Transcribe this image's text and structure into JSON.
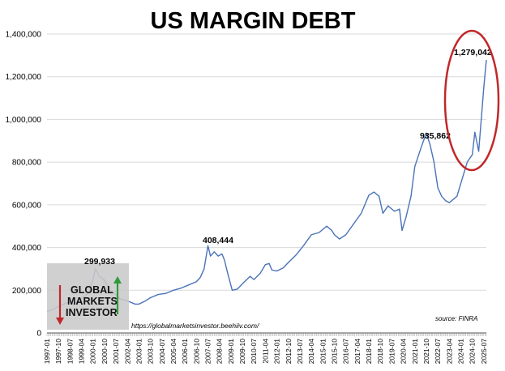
{
  "chart_data": {
    "type": "line",
    "title": "US MARGIN DEBT",
    "xlabel": "",
    "ylabel": "",
    "ylim": [
      0,
      1400000
    ],
    "yticks": [
      0,
      200000,
      400000,
      600000,
      800000,
      1000000,
      1200000,
      1400000
    ],
    "ytick_labels": [
      "0",
      "200,000",
      "400,000",
      "600,000",
      "800,000",
      "1,000,000",
      "1,200,000",
      "1,400,000"
    ],
    "x_range": [
      "1997-01",
      "2025-09"
    ],
    "xtick_labels": [
      "1997-01",
      "1997-10",
      "1998-07",
      "1999-04",
      "2000-01",
      "2000-10",
      "2001-07",
      "2002-04",
      "2003-01",
      "2003-10",
      "2004-07",
      "2005-04",
      "2006-01",
      "2006-10",
      "2007-07",
      "2008-04",
      "2009-01",
      "2009-10",
      "2010-07",
      "2011-04",
      "2012-01",
      "2012-10",
      "2013-07",
      "2014-04",
      "2015-01",
      "2015-10",
      "2016-07",
      "2017-04",
      "2018-01",
      "2018-10",
      "2019-07",
      "2020-04",
      "2021-01",
      "2021-10",
      "2022-07",
      "2023-04",
      "2024-01",
      "2024-10",
      "2025-07"
    ],
    "grid": true,
    "legend": "none",
    "series": [
      {
        "color": "#4a73b8",
        "points": [
          [
            "1997-01",
            100000
          ],
          [
            "1997-06",
            110000
          ],
          [
            "1997-10",
            125000
          ],
          [
            "1998-04",
            140000
          ],
          [
            "1998-07",
            145000
          ],
          [
            "1998-10",
            130000
          ],
          [
            "1999-01",
            150000
          ],
          [
            "1999-06",
            170000
          ],
          [
            "1999-10",
            190000
          ],
          [
            "2000-01",
            250000
          ],
          [
            "2000-03",
            299933
          ],
          [
            "2000-06",
            265000
          ],
          [
            "2000-10",
            248000
          ],
          [
            "2001-02",
            200000
          ],
          [
            "2001-07",
            180000
          ],
          [
            "2001-10",
            160000
          ],
          [
            "2002-04",
            150000
          ],
          [
            "2002-10",
            135000
          ],
          [
            "2003-01",
            135000
          ],
          [
            "2003-06",
            150000
          ],
          [
            "2003-10",
            165000
          ],
          [
            "2004-04",
            180000
          ],
          [
            "2004-10",
            185000
          ],
          [
            "2005-04",
            200000
          ],
          [
            "2005-10",
            210000
          ],
          [
            "2006-04",
            225000
          ],
          [
            "2006-10",
            240000
          ],
          [
            "2007-01",
            260000
          ],
          [
            "2007-04",
            300000
          ],
          [
            "2007-07",
            408444
          ],
          [
            "2007-09",
            360000
          ],
          [
            "2007-12",
            380000
          ],
          [
            "2008-03",
            360000
          ],
          [
            "2008-06",
            370000
          ],
          [
            "2008-08",
            340000
          ],
          [
            "2008-10",
            290000
          ],
          [
            "2009-02",
            200000
          ],
          [
            "2009-06",
            205000
          ],
          [
            "2009-10",
            230000
          ],
          [
            "2010-04",
            265000
          ],
          [
            "2010-07",
            250000
          ],
          [
            "2010-12",
            280000
          ],
          [
            "2011-04",
            320000
          ],
          [
            "2011-07",
            325000
          ],
          [
            "2011-09",
            295000
          ],
          [
            "2012-01",
            290000
          ],
          [
            "2012-06",
            305000
          ],
          [
            "2012-10",
            330000
          ],
          [
            "2013-04",
            365000
          ],
          [
            "2013-10",
            410000
          ],
          [
            "2014-04",
            460000
          ],
          [
            "2014-10",
            470000
          ],
          [
            "2015-04",
            500000
          ],
          [
            "2015-08",
            480000
          ],
          [
            "2015-10",
            460000
          ],
          [
            "2016-02",
            440000
          ],
          [
            "2016-07",
            460000
          ],
          [
            "2017-01",
            510000
          ],
          [
            "2017-07",
            560000
          ],
          [
            "2018-01",
            645000
          ],
          [
            "2018-05",
            660000
          ],
          [
            "2018-09",
            640000
          ],
          [
            "2018-12",
            560000
          ],
          [
            "2019-04",
            595000
          ],
          [
            "2019-09",
            570000
          ],
          [
            "2020-01",
            580000
          ],
          [
            "2020-03",
            480000
          ],
          [
            "2020-06",
            540000
          ],
          [
            "2020-10",
            640000
          ],
          [
            "2021-01",
            780000
          ],
          [
            "2021-06",
            870000
          ],
          [
            "2021-10",
            935862
          ],
          [
            "2022-01",
            880000
          ],
          [
            "2022-04",
            800000
          ],
          [
            "2022-07",
            680000
          ],
          [
            "2022-10",
            640000
          ],
          [
            "2023-01",
            620000
          ],
          [
            "2023-04",
            610000
          ],
          [
            "2023-10",
            640000
          ],
          [
            "2024-02",
            720000
          ],
          [
            "2024-06",
            800000
          ],
          [
            "2024-10",
            835000
          ],
          [
            "2024-12",
            940000
          ],
          [
            "2025-03",
            850000
          ],
          [
            "2025-05",
            1000000
          ],
          [
            "2025-07",
            1150000
          ],
          [
            "2025-09",
            1279042
          ]
        ]
      }
    ],
    "annotations": [
      "299,933",
      "408,444",
      "935,862",
      "1,279,042"
    ],
    "highlight": "red ellipse around 2024-2025 peak",
    "source": "source: FINRA",
    "url": "https://globalmarketsinvestor.beehiiv.com/"
  },
  "logo": {
    "line1": "GLOBAL",
    "line2": "MARKETS",
    "line3": "INVESTOR"
  },
  "colors": {
    "line": "#4a73b8",
    "highlight": "#c0282a",
    "grid": "#d9d9d9",
    "arrow_down": "#c0282a",
    "arrow_up": "#2e9b3a"
  }
}
